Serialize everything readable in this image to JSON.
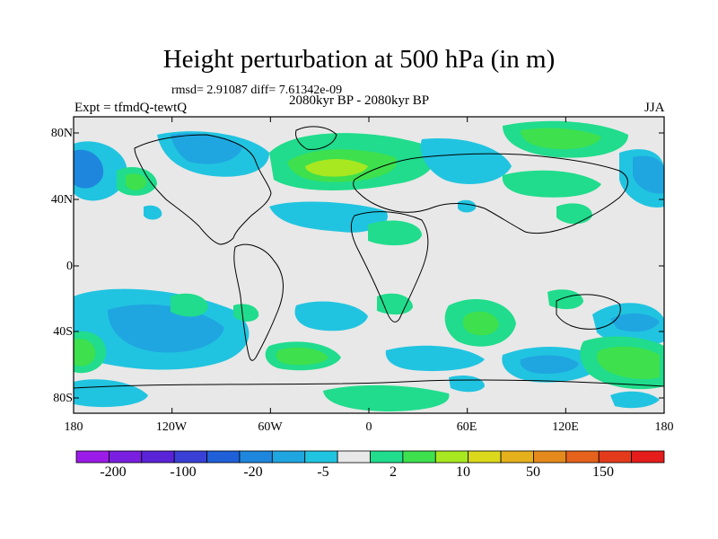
{
  "title": "Height perturbation at 500 hPa (in m)",
  "stats": "rmsd= 2.91087 diff= 7.61342e-09",
  "period": "2080kyr BP - 2080kyr BP",
  "experiment": "Expt = tfmdQ-tewtQ",
  "season": "JJA",
  "lat_labels": [
    "80N",
    "40N",
    "0",
    "40S",
    "80S"
  ],
  "lon_labels": [
    "180",
    "120W",
    "60W",
    "0",
    "60E",
    "120E",
    "180"
  ],
  "colorbar": {
    "colors": [
      "#9b1be8",
      "#7a1fe0",
      "#5a23d8",
      "#3a3fd6",
      "#1f5fd8",
      "#1e86dc",
      "#1fa6e0",
      "#21c4e0",
      "#e8e8e8",
      "#20dc8c",
      "#3ee04e",
      "#a8e820",
      "#dcd81c",
      "#e4b01c",
      "#e48a1c",
      "#e4621c",
      "#e43a1c",
      "#e41c1c"
    ],
    "labels": [
      "-200",
      "-100",
      "-20",
      "-5",
      "2",
      "10",
      "50",
      "150"
    ],
    "level_lightblue": "#21c4e0",
    "level_midblue": "#1fa6e0",
    "level_darkblue": "#1e86dc",
    "level_green": "#20dc8c",
    "level_lime": "#3ee04e",
    "level_yellowgreen": "#a8e820",
    "background": "#e8e8e8"
  }
}
